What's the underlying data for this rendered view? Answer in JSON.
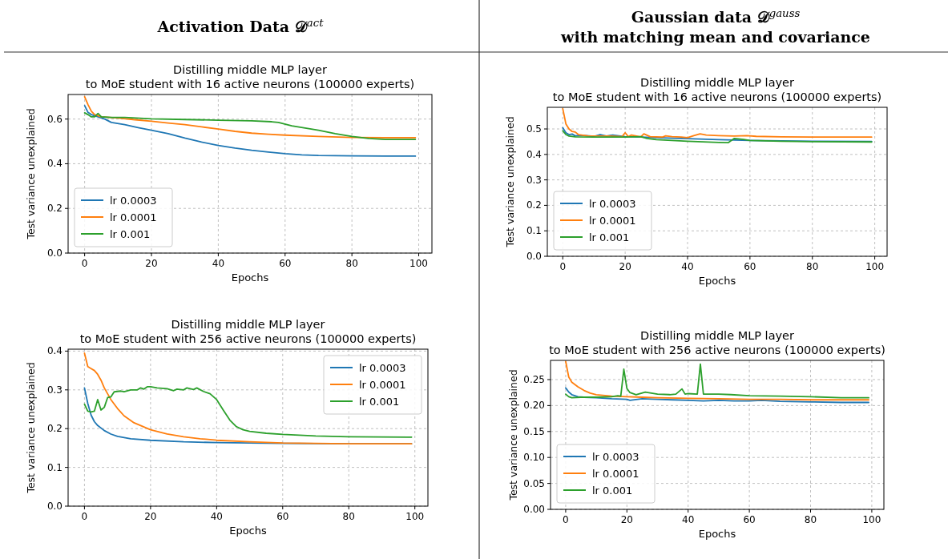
{
  "chart_data": [
    {
      "type": "other",
      "title": "Activation Data 𝒟$^{act}$"
    },
    {
      "type": "other",
      "title": "Gaussian data 𝒟$^{gauss}$\nwith matching mean and covariance"
    },
    {
      "type": "line",
      "title": "Distilling middle MLP layer\nto MoE student with 16 active neurons (100000 experts)",
      "xlabel": "Epochs",
      "ylabel": "Test variance unexplained",
      "xlim": [
        -4.95,
        103.95
      ],
      "xticks": [
        0,
        20,
        40,
        60,
        80,
        100
      ],
      "ylim": [
        0,
        0.71
      ],
      "yticks": [
        {
          "value": 0,
          "label": "0.0"
        },
        {
          "value": 0.2,
          "label": "0.2"
        },
        {
          "value": 0.4,
          "label": "0.4"
        },
        {
          "value": 0.6,
          "label": "0.6"
        }
      ],
      "grid": true,
      "legend": "bottom left",
      "line_style": "solid",
      "series": [
        {
          "name": "lr 0.0003",
          "color": "#1f77b4",
          "x": [
            0,
            1,
            2,
            4,
            6,
            8,
            12,
            16,
            20,
            25,
            30,
            35,
            40,
            45,
            50,
            55,
            60,
            65,
            70,
            80,
            90,
            99
          ],
          "values": [
            0.66,
            0.63,
            0.62,
            0.61,
            0.6,
            0.585,
            0.575,
            0.562,
            0.55,
            0.535,
            0.515,
            0.497,
            0.482,
            0.47,
            0.46,
            0.452,
            0.445,
            0.44,
            0.437,
            0.435,
            0.434,
            0.434
          ]
        },
        {
          "name": "lr 0.0001",
          "color": "#ff7f0e",
          "x": [
            0,
            1,
            2,
            3,
            5,
            10,
            15,
            20,
            25,
            30,
            35,
            40,
            45,
            50,
            55,
            60,
            70,
            80,
            90,
            99
          ],
          "values": [
            0.7,
            0.665,
            0.635,
            0.62,
            0.61,
            0.605,
            0.597,
            0.59,
            0.582,
            0.575,
            0.565,
            0.555,
            0.545,
            0.537,
            0.532,
            0.528,
            0.522,
            0.518,
            0.517,
            0.517
          ]
        },
        {
          "name": "lr 0.001",
          "color": "#2ca02c",
          "x": [
            0,
            1,
            2,
            3,
            4,
            5,
            8,
            12,
            20,
            30,
            40,
            50,
            56,
            58,
            62,
            66,
            70,
            75,
            80,
            85,
            90,
            99
          ],
          "values": [
            0.628,
            0.62,
            0.61,
            0.61,
            0.625,
            0.61,
            0.607,
            0.607,
            0.601,
            0.598,
            0.595,
            0.592,
            0.588,
            0.585,
            0.57,
            0.56,
            0.55,
            0.535,
            0.522,
            0.513,
            0.509,
            0.509
          ]
        }
      ]
    },
    {
      "type": "line",
      "title": "Distilling middle MLP layer\nto MoE student with 16 active neurons (100000 experts)",
      "xlabel": "Epochs",
      "ylabel": "Test variance unexplained",
      "xlim": [
        -4.95,
        103.95
      ],
      "xticks": [
        0,
        20,
        40,
        60,
        80,
        100
      ],
      "ylim": [
        0,
        0.585
      ],
      "yticks": [
        {
          "value": 0,
          "label": "0.0"
        },
        0.1,
        0.2,
        0.3,
        0.4,
        0.5
      ],
      "grid": true,
      "legend": "bottom left",
      "line_style": "solid",
      "series": [
        {
          "name": "lr 0.0003",
          "color": "#1f77b4",
          "x": [
            0,
            1,
            2,
            3,
            4,
            6,
            10,
            12,
            14,
            16,
            20,
            25,
            30,
            40,
            50,
            60,
            70,
            80,
            99
          ],
          "values": [
            0.505,
            0.485,
            0.478,
            0.48,
            0.473,
            0.475,
            0.471,
            0.478,
            0.472,
            0.476,
            0.47,
            0.468,
            0.466,
            0.462,
            0.458,
            0.455,
            0.453,
            0.452,
            0.451
          ]
        },
        {
          "name": "lr 0.0001",
          "color": "#ff7f0e",
          "x": [
            0,
            1,
            2,
            3,
            4,
            5,
            8,
            15,
            19,
            20,
            21,
            22,
            25,
            26,
            28,
            32,
            33,
            35,
            38,
            40,
            42,
            44,
            46,
            50,
            55,
            59,
            62,
            70,
            80,
            99
          ],
          "values": [
            0.58,
            0.52,
            0.5,
            0.49,
            0.488,
            0.478,
            0.473,
            0.472,
            0.47,
            0.485,
            0.47,
            0.476,
            0.469,
            0.481,
            0.47,
            0.468,
            0.473,
            0.47,
            0.468,
            0.466,
            0.474,
            0.481,
            0.476,
            0.474,
            0.472,
            0.474,
            0.471,
            0.469,
            0.468,
            0.468
          ]
        },
        {
          "name": "lr 0.001",
          "color": "#2ca02c",
          "x": [
            0,
            1,
            2,
            4,
            10,
            20,
            25,
            27,
            30,
            40,
            50,
            53,
            55,
            58,
            60,
            70,
            80,
            99
          ],
          "values": [
            0.493,
            0.478,
            0.472,
            0.469,
            0.468,
            0.468,
            0.47,
            0.463,
            0.458,
            0.452,
            0.447,
            0.446,
            0.463,
            0.459,
            0.455,
            0.452,
            0.45,
            0.449
          ]
        }
      ]
    },
    {
      "type": "line",
      "title": "Distilling middle MLP layer\nto MoE student with 256 active neurons (100000 experts)",
      "xlabel": "Epochs",
      "ylabel": "Test variance unexplained",
      "xlim": [
        -4.95,
        103.95
      ],
      "xticks": [
        0,
        20,
        40,
        60,
        80,
        100
      ],
      "ylim": [
        0,
        0.405
      ],
      "yticks": [
        {
          "value": 0,
          "label": "0.0"
        },
        0.1,
        0.2,
        0.3,
        0.4
      ],
      "grid": true,
      "legend": "top right",
      "line_style": "solid",
      "series": [
        {
          "name": "lr 0.0003",
          "color": "#1f77b4",
          "x": [
            0,
            1,
            2,
            3,
            4,
            6,
            8,
            10,
            14,
            20,
            30,
            40,
            60,
            80,
            99
          ],
          "values": [
            0.305,
            0.265,
            0.235,
            0.218,
            0.208,
            0.195,
            0.186,
            0.18,
            0.174,
            0.17,
            0.166,
            0.164,
            0.162,
            0.161,
            0.161
          ]
        },
        {
          "name": "lr 0.0001",
          "color": "#ff7f0e",
          "x": [
            0,
            1,
            2,
            3,
            4,
            5,
            6,
            8,
            10,
            12,
            15,
            20,
            25,
            30,
            35,
            40,
            50,
            60,
            80,
            99
          ],
          "values": [
            0.395,
            0.36,
            0.355,
            0.35,
            0.34,
            0.325,
            0.305,
            0.275,
            0.252,
            0.233,
            0.215,
            0.197,
            0.186,
            0.179,
            0.174,
            0.17,
            0.166,
            0.163,
            0.161,
            0.161
          ]
        },
        {
          "name": "lr 0.001",
          "color": "#2ca02c",
          "x": [
            0,
            1,
            2,
            3,
            4,
            5,
            6,
            7,
            8,
            9,
            11,
            12,
            14,
            16,
            17,
            18,
            19,
            20,
            22,
            25,
            27,
            28,
            30,
            31,
            33,
            34,
            36,
            38,
            40,
            42,
            44,
            46,
            48,
            50,
            55,
            60,
            70,
            80,
            99
          ],
          "values": [
            0.263,
            0.245,
            0.243,
            0.245,
            0.275,
            0.248,
            0.255,
            0.28,
            0.282,
            0.295,
            0.297,
            0.295,
            0.3,
            0.3,
            0.305,
            0.302,
            0.308,
            0.308,
            0.305,
            0.303,
            0.298,
            0.302,
            0.3,
            0.305,
            0.301,
            0.305,
            0.296,
            0.29,
            0.275,
            0.248,
            0.222,
            0.205,
            0.197,
            0.193,
            0.188,
            0.185,
            0.181,
            0.179,
            0.178
          ]
        }
      ]
    },
    {
      "type": "line",
      "title": "Distilling middle MLP layer\nto MoE student with 256 active neurons (100000 experts)",
      "xlabel": "Epochs",
      "ylabel": "Test variance unexplained",
      "xlim": [
        -4.95,
        103.95
      ],
      "xticks": [
        0,
        20,
        40,
        60,
        80,
        100
      ],
      "ylim": [
        0,
        0.287
      ],
      "yticks": [
        {
          "value": 0,
          "label": "0.00"
        },
        {
          "value": 0.05,
          "label": "0.05"
        },
        {
          "value": 0.1,
          "label": "0.10"
        },
        {
          "value": 0.15,
          "label": "0.15"
        },
        {
          "value": 0.2,
          "label": "0.20"
        },
        {
          "value": 0.25,
          "label": "0.25"
        }
      ],
      "grid": true,
      "legend": "bottom left",
      "line_style": "solid",
      "series": [
        {
          "name": "lr 0.0003",
          "color": "#1f77b4",
          "x": [
            0,
            1,
            2,
            4,
            6,
            10,
            15,
            20,
            21,
            25,
            30,
            35,
            40,
            45,
            50,
            55,
            60,
            64,
            70,
            80,
            90,
            99
          ],
          "values": [
            0.234,
            0.226,
            0.221,
            0.217,
            0.216,
            0.215,
            0.213,
            0.212,
            0.21,
            0.213,
            0.212,
            0.211,
            0.21,
            0.209,
            0.21,
            0.209,
            0.209,
            0.21,
            0.208,
            0.207,
            0.206,
            0.206
          ]
        },
        {
          "name": "lr 0.0001",
          "color": "#ff7f0e",
          "x": [
            0,
            1,
            2,
            4,
            6,
            8,
            10,
            15,
            20,
            25,
            30,
            40,
            50,
            60,
            70,
            80,
            99
          ],
          "values": [
            0.285,
            0.255,
            0.245,
            0.236,
            0.229,
            0.224,
            0.221,
            0.218,
            0.217,
            0.216,
            0.215,
            0.214,
            0.213,
            0.212,
            0.212,
            0.211,
            0.211
          ]
        },
        {
          "name": "lr 0.001",
          "color": "#2ca02c",
          "x": [
            0,
            1,
            2,
            5,
            10,
            15,
            17,
            18,
            19,
            20,
            21,
            23,
            26,
            28,
            30,
            34,
            36,
            38,
            39,
            40,
            43,
            44,
            45,
            50,
            54,
            60,
            70,
            80,
            90,
            99
          ],
          "values": [
            0.222,
            0.217,
            0.215,
            0.216,
            0.216,
            0.217,
            0.219,
            0.218,
            0.27,
            0.233,
            0.225,
            0.221,
            0.226,
            0.224,
            0.222,
            0.221,
            0.222,
            0.232,
            0.222,
            0.223,
            0.222,
            0.28,
            0.222,
            0.222,
            0.221,
            0.219,
            0.218,
            0.217,
            0.215,
            0.215
          ]
        }
      ]
    }
  ]
}
